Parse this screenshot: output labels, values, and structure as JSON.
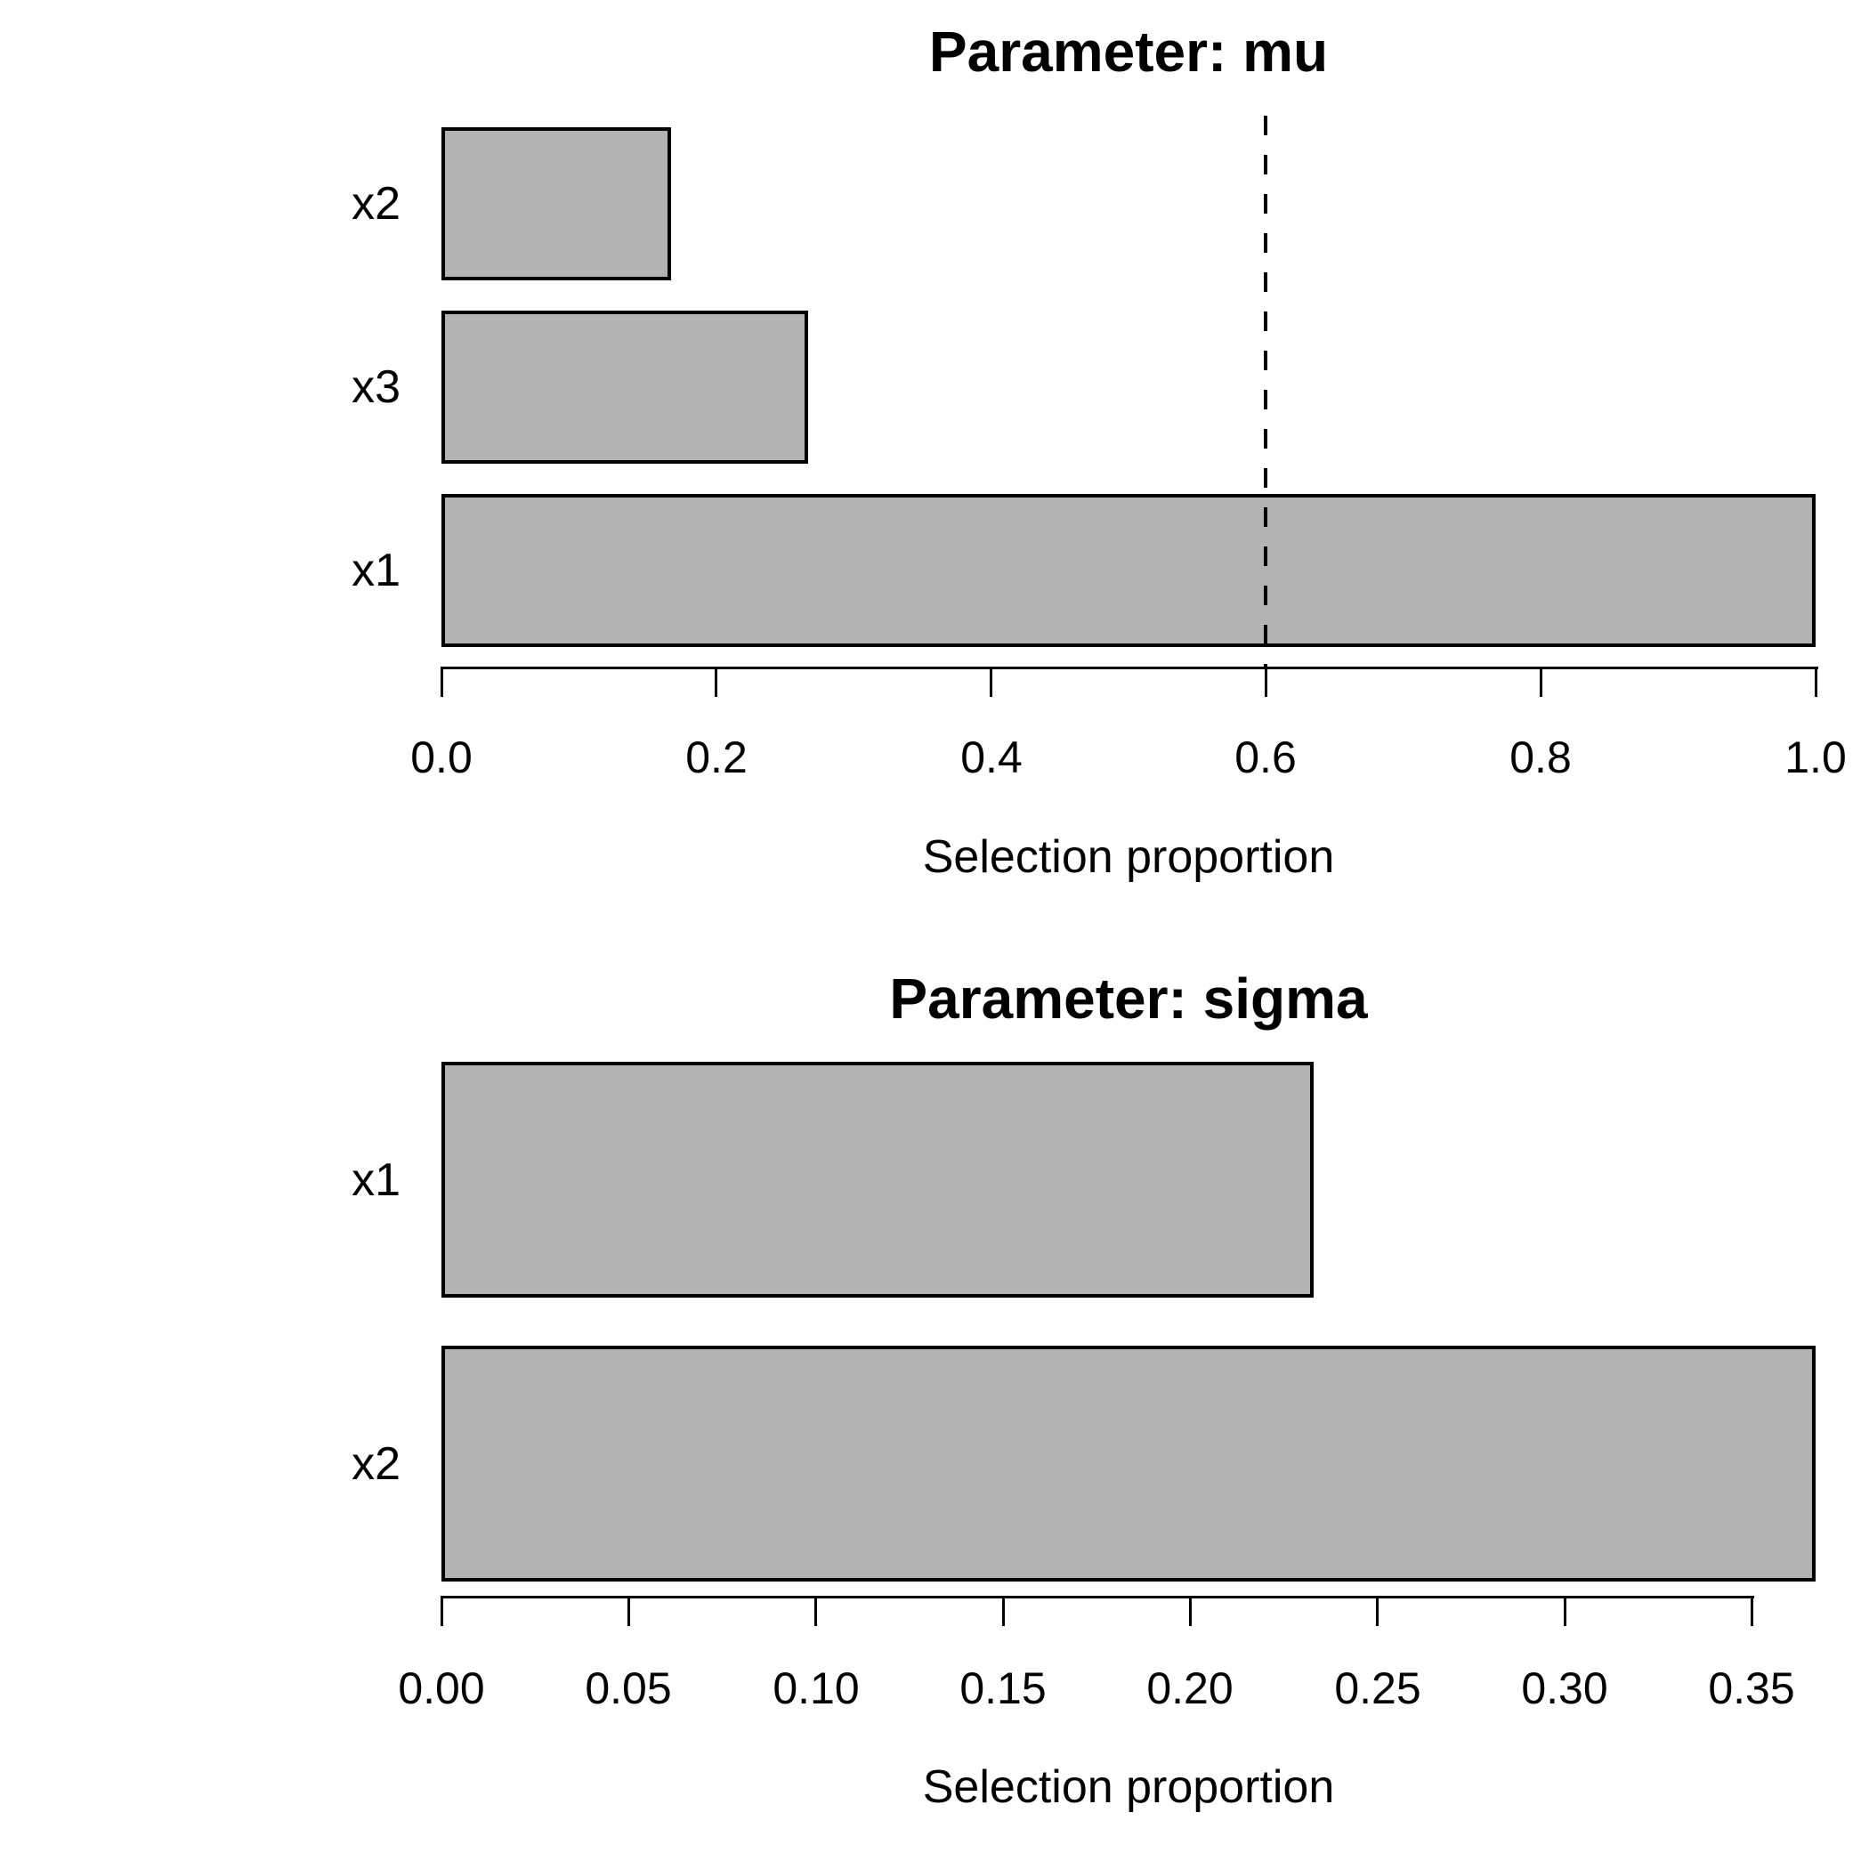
{
  "figure": {
    "background": "#ffffff",
    "text_color": "#000000"
  },
  "chart_data": [
    {
      "type": "bar",
      "orientation": "horizontal",
      "title": "Parameter: mu",
      "xlabel": "Selection proportion",
      "categories": [
        "x2",
        "x3",
        "x1"
      ],
      "values": [
        0.167,
        0.267,
        1.0
      ],
      "xlim": [
        0,
        1.0
      ],
      "xticks": [
        0,
        0.2,
        0.4,
        0.6,
        0.8,
        1.0
      ],
      "xtick_labels": [
        "0.0",
        "0.2",
        "0.4",
        "0.6",
        "0.8",
        "1.0"
      ],
      "threshold": {
        "value": 0.6,
        "line_style": "dashed",
        "color": "#000000"
      },
      "bar_color": "#b3b3b3",
      "bar_border_color": "#000000",
      "grid": false,
      "legend": null
    },
    {
      "type": "bar",
      "orientation": "horizontal",
      "title": "Parameter: sigma",
      "xlabel": "Selection proportion",
      "categories": [
        "x1",
        "x2"
      ],
      "values": [
        0.233,
        0.367
      ],
      "xlim": [
        0,
        0.367
      ],
      "xticks": [
        0,
        0.05,
        0.1,
        0.15,
        0.2,
        0.25,
        0.3,
        0.35
      ],
      "xtick_labels": [
        "0.00",
        "0.05",
        "0.10",
        "0.15",
        "0.20",
        "0.25",
        "0.30",
        "0.35"
      ],
      "threshold": null,
      "bar_color": "#b3b3b3",
      "bar_border_color": "#000000",
      "grid": false,
      "legend": null
    }
  ]
}
